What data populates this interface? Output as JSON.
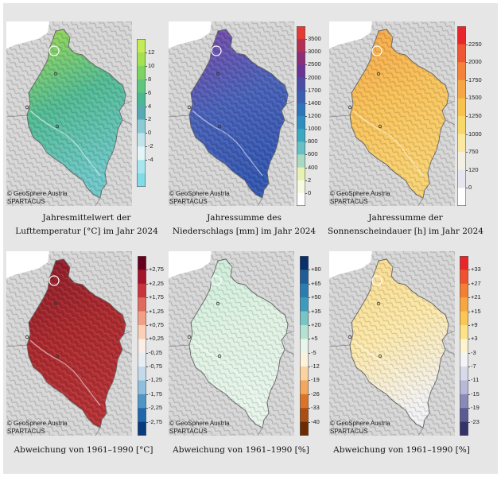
{
  "credit": {
    "line1": "© GeoSphere Austria",
    "line2": "SPARTACUS"
  },
  "panels": [
    {
      "caption": [
        "Jahresmittelwert der",
        "Lufttemperatur [°C] im Jahr 2024"
      ],
      "legend": {
        "ticks": [
          "12",
          "10",
          "8",
          "6",
          "4",
          "2",
          "0",
          "-2",
          "-4"
        ],
        "colors": [
          "#c4ec55",
          "#a4e052",
          "#7ed462",
          "#5ec77c",
          "#4cb794",
          "#56aab3",
          "#8ccad6",
          "#c0e4ea",
          "#e4f5f7",
          "#a8e6ef",
          "#80dce6"
        ]
      },
      "fill": {
        "top": "#9dd84e",
        "mid": "#52ba94",
        "bottom": "#6fc7c8"
      }
    },
    {
      "caption": [
        "Jahressumme des",
        "Niederschlags [mm] im Jahr 2024"
      ],
      "legend": {
        "ticks": [
          "3500",
          "3000",
          "2500",
          "2000",
          "1700",
          "1400",
          "1200",
          "1000",
          "800",
          "600",
          "400",
          "2",
          "0"
        ],
        "colors": [
          "#e63b34",
          "#b52f52",
          "#8b2f7a",
          "#6a3497",
          "#4c4ca6",
          "#3a5fb2",
          "#2e74b8",
          "#2c8fbf",
          "#3aa9c2",
          "#68c0c5",
          "#a8dac1",
          "#e8f2b2",
          "#f7f9e0",
          "#ffffff"
        ]
      },
      "fill": {
        "top": "#7a4aa8",
        "mid": "#4a62b8",
        "bottom": "#3457b0"
      }
    },
    {
      "caption": [
        "Jahressumme der",
        "Sonnenscheindauer [h] im Jahr 2024"
      ],
      "legend": {
        "ticks": [
          "2250",
          "2000",
          "1750",
          "1500",
          "1250",
          "1000",
          "750",
          "120",
          "0"
        ],
        "colors": [
          "#e8262a",
          "#ee5634",
          "#f3823b",
          "#f6a644",
          "#f8c24f",
          "#f9d86a",
          "#fbe9a0",
          "#f4f0e4",
          "#e7e5ef",
          "#ffffff"
        ]
      },
      "fill": {
        "top": "#f5a446",
        "mid": "#f7c25a",
        "bottom": "#f8d272"
      }
    },
    {
      "caption": [
        "Abweichung von 1961–1990 [°C]"
      ],
      "legend": {
        "ticks": [
          "+2,75",
          "+2,25",
          "+1,75",
          "+1,25",
          "+0,75",
          "+0,25",
          "-0,25",
          "-0,75",
          "-1,25",
          "-1,75",
          "-2,25",
          "-2,75"
        ],
        "colors": [
          "#67001f",
          "#a3142a",
          "#c9333b",
          "#e06b5c",
          "#f1a087",
          "#fbcfb8",
          "#fbeee6",
          "#e6eef5",
          "#c3daea",
          "#8ebfdc",
          "#4f94c4",
          "#2166ac",
          "#0b3a7a"
        ]
      },
      "fill": {
        "top": "#8a1c2a",
        "mid": "#aa2a2e",
        "bottom": "#b43236"
      }
    },
    {
      "caption": [
        "Abweichung von 1961–1990 [%]"
      ],
      "legend": {
        "ticks": [
          "+80",
          "+65",
          "+50",
          "+35",
          "+20",
          "+5",
          "-5",
          "-12",
          "-19",
          "-26",
          "-33",
          "-40"
        ],
        "colors": [
          "#08306b",
          "#1f5d96",
          "#2b7db0",
          "#3f9bbd",
          "#79c4c4",
          "#b5e1d2",
          "#e8f5ea",
          "#fdf2dc",
          "#fbd3a0",
          "#f2a65e",
          "#d97428",
          "#a94f12",
          "#6b2c04"
        ]
      },
      "fill": {
        "top": "#c9ebd8",
        "mid": "#dff2e3",
        "bottom": "#e6f4ea"
      }
    },
    {
      "caption": [
        "Abweichung von 1961–1990 [%]"
      ],
      "legend": {
        "ticks": [
          "+33",
          "+27",
          "+21",
          "+15",
          "+9",
          "+3",
          "-3",
          "-7",
          "-11",
          "-15",
          "-19",
          "-23"
        ],
        "colors": [
          "#e8262a",
          "#f0522f",
          "#f57e35",
          "#f8a63f",
          "#fbc654",
          "#fde287",
          "#fef4d0",
          "#f4f4f7",
          "#d9d9ea",
          "#b8b8d7",
          "#8a8ab9",
          "#5b5b93",
          "#34346b"
        ]
      },
      "fill": {
        "top": "#f7d98a",
        "mid": "#fbe7a8",
        "bottom": "#f1f1f3"
      }
    }
  ]
}
